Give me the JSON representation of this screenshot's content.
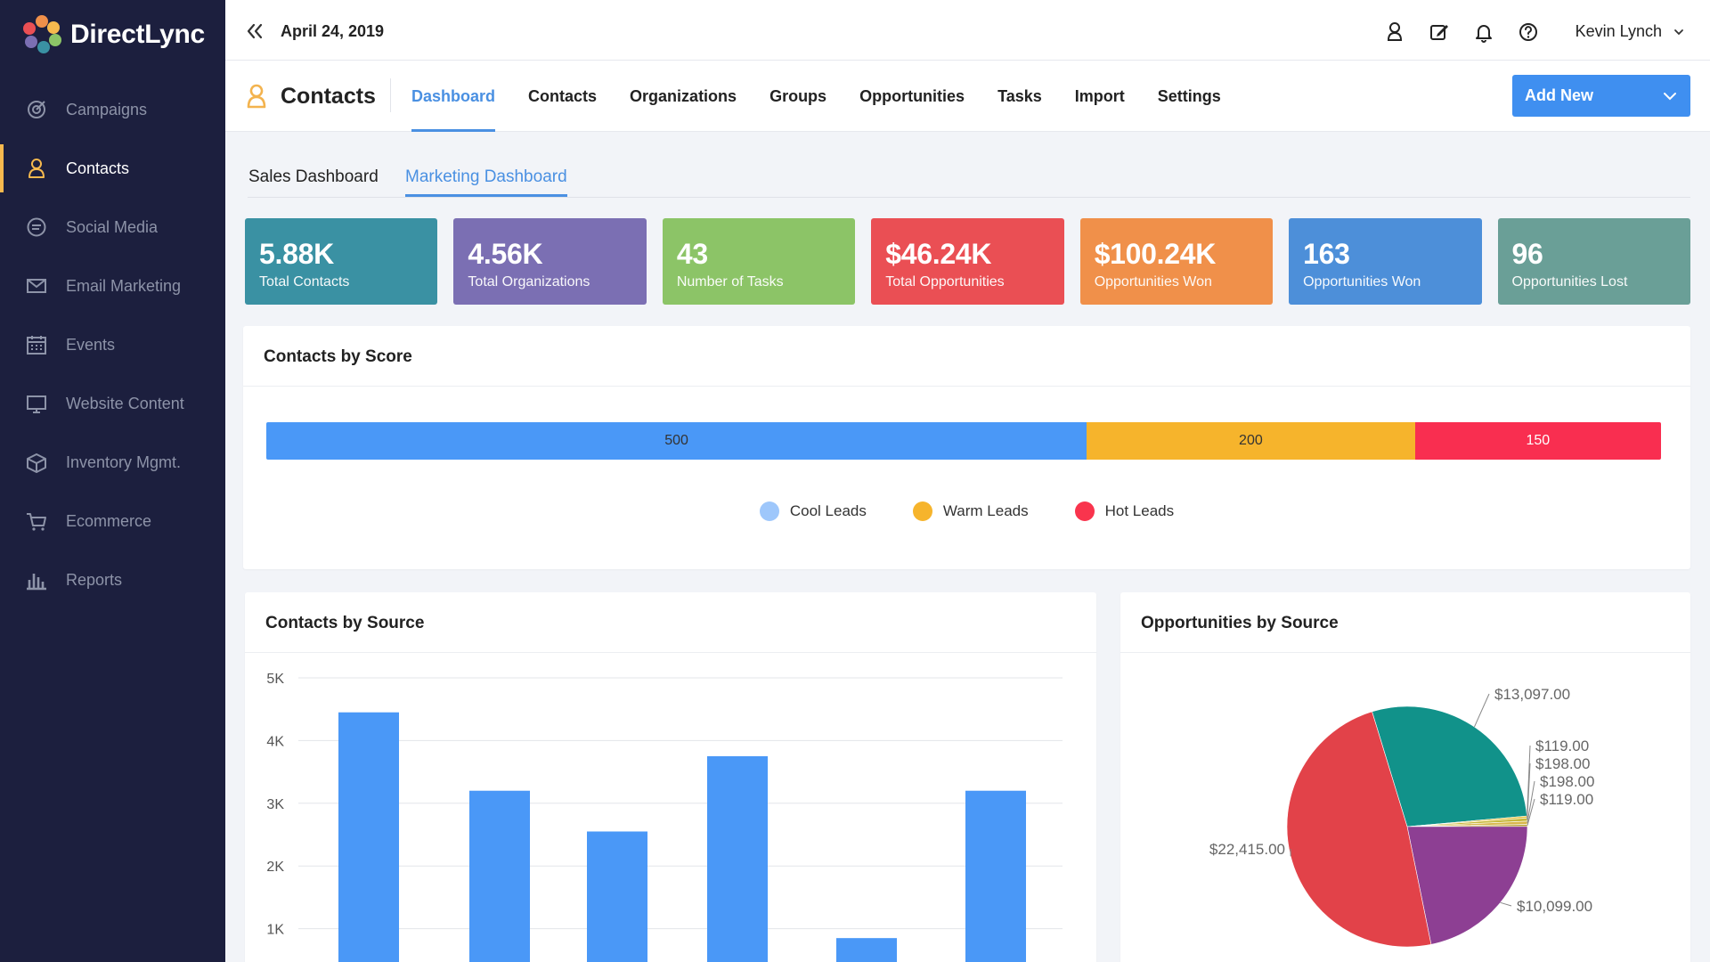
{
  "brand": {
    "name": "DirectLync"
  },
  "sidebar": {
    "items": [
      {
        "label": "Campaigns",
        "icon": "target-icon",
        "active": false
      },
      {
        "label": "Contacts",
        "icon": "person-icon",
        "active": true
      },
      {
        "label": "Social Media",
        "icon": "chat-bubble-icon",
        "active": false
      },
      {
        "label": "Email Marketing",
        "icon": "envelope-icon",
        "active": false
      },
      {
        "label": "Events",
        "icon": "calendar-icon",
        "active": false
      },
      {
        "label": "Website Content",
        "icon": "monitor-icon",
        "active": false
      },
      {
        "label": "Inventory Mgmt.",
        "icon": "box-icon",
        "active": false
      },
      {
        "label": "Ecommerce",
        "icon": "cart-icon",
        "active": false
      },
      {
        "label": "Reports",
        "icon": "bar-chart-icon",
        "active": false
      }
    ]
  },
  "topbar": {
    "date": "April 24, 2019",
    "icons": [
      "person-icon",
      "edit-icon",
      "bell-icon",
      "help-icon"
    ],
    "user_name": "Kevin Lynch"
  },
  "module": {
    "title": "Contacts",
    "tabs": [
      {
        "label": "Dashboard",
        "active": true
      },
      {
        "label": "Contacts",
        "active": false
      },
      {
        "label": "Organizations",
        "active": false
      },
      {
        "label": "Groups",
        "active": false
      },
      {
        "label": "Opportunities",
        "active": false
      },
      {
        "label": "Tasks",
        "active": false
      },
      {
        "label": "Import",
        "active": false
      },
      {
        "label": "Settings",
        "active": false
      }
    ],
    "add_new_label": "Add New"
  },
  "dashboards": {
    "tabs": [
      {
        "label": "Sales Dashboard",
        "active": false
      },
      {
        "label": "Marketing Dashboard",
        "active": true
      }
    ]
  },
  "kpis": [
    {
      "value": "5.88K",
      "label": "Total Contacts",
      "color": "#3a91a3"
    },
    {
      "value": "4.56K",
      "label": "Total Organizations",
      "color": "#7b6fb3"
    },
    {
      "value": "43",
      "label": "Number of Tasks",
      "color": "#8cc467"
    },
    {
      "value": "$46.24K",
      "label": "Total Opportunities",
      "color": "#ea4f54"
    },
    {
      "value": "$100.24K",
      "label": "Opportunities Won",
      "color": "#f0904a"
    },
    {
      "value": "163",
      "label": "Opportunities Won",
      "color": "#4d8fd9"
    },
    {
      "value": "96",
      "label": "Opportunities Lost",
      "color": "#6a9f97"
    }
  ],
  "score_panel": {
    "title": "Contacts by Score",
    "segments": [
      {
        "label": "500",
        "value": 500,
        "color": "#4a98f7"
      },
      {
        "label": "200",
        "value": 200,
        "color": "#f6b42c"
      },
      {
        "label": "150",
        "value": 150,
        "color": "#f92e50"
      }
    ],
    "legend": [
      {
        "label": "Cool Leads",
        "color": "#9ec7fb"
      },
      {
        "label": "Warm Leads",
        "color": "#f6b42c"
      },
      {
        "label": "Hot Leads",
        "color": "#f9344d"
      }
    ]
  },
  "source_panel": {
    "title": "Contacts by Source"
  },
  "opp_panel": {
    "title": "Opportunities by Source"
  },
  "chart_data": [
    {
      "type": "bar",
      "title": "Contacts by Source",
      "y_ticks": [
        "1K",
        "2K",
        "3K",
        "4K",
        "5K"
      ],
      "ylim": [
        0,
        5000
      ],
      "values": [
        4450,
        3200,
        2550,
        3750,
        850,
        3200
      ],
      "color": "#4a98f7",
      "grid": true
    },
    {
      "type": "pie",
      "title": "Opportunities by Source",
      "slices": [
        {
          "label": "$13,097.00",
          "value": 13097,
          "color": "#11928a"
        },
        {
          "label": "$119.00",
          "value": 119,
          "color": "#e8c13f"
        },
        {
          "label": "$198.00",
          "value": 198,
          "color": "#c7b93d"
        },
        {
          "label": "$198.00",
          "value": 198,
          "color": "#d8b74a"
        },
        {
          "label": "$119.00",
          "value": 119,
          "color": "#b7a03a"
        },
        {
          "label": "$10,099.00",
          "value": 10099,
          "color": "#8d3f93"
        },
        {
          "label": "$22,415.00",
          "value": 22415,
          "color": "#e24249"
        }
      ]
    }
  ]
}
